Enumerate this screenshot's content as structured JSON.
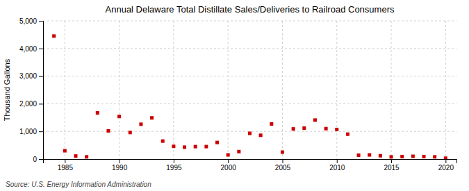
{
  "chart_data": {
    "type": "scatter",
    "title": "Annual Delaware Total Distillate Sales/Deliveries to Railroad Consumers",
    "ylabel": "Thousand Gallons",
    "annotation": "Source: U.S. Energy Information Administration",
    "x": [
      1984,
      1985,
      1986,
      1987,
      1988,
      1989,
      1990,
      1991,
      1992,
      1993,
      1994,
      1995,
      1996,
      1997,
      1998,
      1999,
      2000,
      2001,
      2002,
      2003,
      2004,
      2005,
      2006,
      2007,
      2008,
      2009,
      2010,
      2011,
      2012,
      2013,
      2014,
      2015,
      2016,
      2017,
      2018,
      2019,
      2020
    ],
    "values": [
      4450,
      300,
      110,
      80,
      1670,
      1020,
      1540,
      960,
      1260,
      1490,
      650,
      460,
      430,
      450,
      450,
      600,
      150,
      270,
      930,
      860,
      1270,
      250,
      1090,
      1120,
      1410,
      1100,
      1070,
      900,
      140,
      150,
      120,
      80,
      90,
      100,
      90,
      80,
      30
    ],
    "color": "#cc0000",
    "marker": "square",
    "xlim": [
      1983,
      2021
    ],
    "xticks": [
      1985,
      1990,
      1995,
      2000,
      2005,
      2010,
      2015,
      2020
    ],
    "ylim": [
      0,
      5000
    ],
    "yticks": [
      0,
      {
        "value": 1000,
        "label": "1,000"
      },
      {
        "value": 2000,
        "label": "2,000"
      },
      {
        "value": 3000,
        "label": "3,000"
      },
      {
        "value": 4000,
        "label": "4,000"
      },
      {
        "value": 5000,
        "label": "5,000"
      }
    ],
    "grid": true
  }
}
